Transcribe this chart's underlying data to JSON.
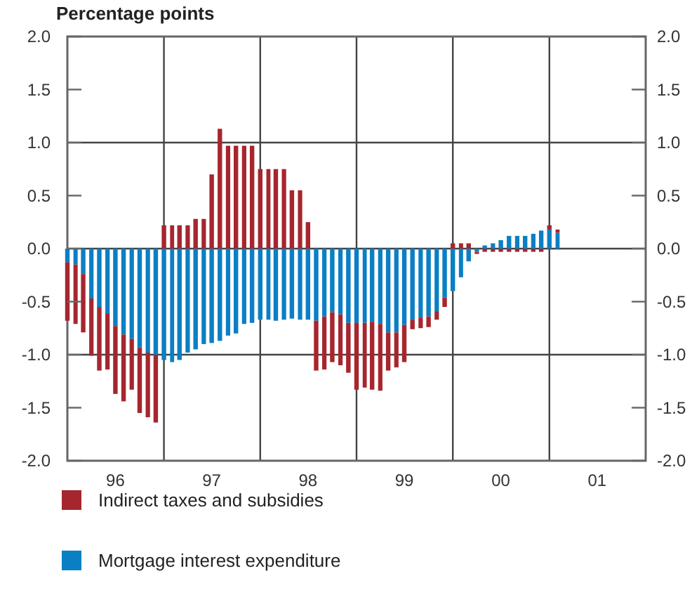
{
  "chart_data": {
    "type": "bar",
    "title": "Percentage points",
    "stacked": true,
    "x": [
      "1996-01",
      "1996-02",
      "1996-03",
      "1996-04",
      "1996-05",
      "1996-06",
      "1996-07",
      "1996-08",
      "1996-09",
      "1996-10",
      "1996-11",
      "1996-12",
      "1997-01",
      "1997-02",
      "1997-03",
      "1997-04",
      "1997-05",
      "1997-06",
      "1997-07",
      "1997-08",
      "1997-09",
      "1997-10",
      "1997-11",
      "1997-12",
      "1998-01",
      "1998-02",
      "1998-03",
      "1998-04",
      "1998-05",
      "1998-06",
      "1998-07",
      "1998-08",
      "1998-09",
      "1998-10",
      "1998-11",
      "1998-12",
      "1999-01",
      "1999-02",
      "1999-03",
      "1999-04",
      "1999-05",
      "1999-06",
      "1999-07",
      "1999-08",
      "1999-09",
      "1999-10",
      "1999-11",
      "1999-12",
      "2000-01",
      "2000-02",
      "2000-03",
      "2000-04",
      "2000-05",
      "2000-06",
      "2000-07",
      "2000-08",
      "2000-09",
      "2000-10",
      "2000-11",
      "2000-12",
      "2001-01",
      "2001-02"
    ],
    "series": [
      {
        "name": "Mortgage interest expenditure",
        "color": "#0a7fc4",
        "values": [
          -0.13,
          -0.15,
          -0.24,
          -0.47,
          -0.55,
          -0.61,
          -0.73,
          -0.81,
          -0.85,
          -0.93,
          -0.98,
          -1.0,
          -1.05,
          -1.07,
          -1.05,
          -0.98,
          -0.95,
          -0.9,
          -0.89,
          -0.87,
          -0.82,
          -0.8,
          -0.71,
          -0.7,
          -0.67,
          -0.67,
          -0.68,
          -0.67,
          -0.66,
          -0.67,
          -0.67,
          -0.68,
          -0.64,
          -0.6,
          -0.62,
          -0.7,
          -0.7,
          -0.7,
          -0.69,
          -0.71,
          -0.79,
          -0.79,
          -0.72,
          -0.67,
          -0.65,
          -0.64,
          -0.59,
          -0.46,
          -0.4,
          -0.27,
          -0.12,
          -0.03,
          0.03,
          0.05,
          0.08,
          0.12,
          0.12,
          0.12,
          0.14,
          0.17,
          0.18,
          0.15
        ]
      },
      {
        "name": "Indirect taxes and subsidies",
        "color": "#a6262e",
        "values": [
          -0.55,
          -0.56,
          -0.55,
          -0.54,
          -0.6,
          -0.53,
          -0.64,
          -0.63,
          -0.48,
          -0.62,
          -0.61,
          -0.64,
          0.22,
          0.22,
          0.22,
          0.22,
          0.28,
          0.28,
          0.7,
          1.13,
          0.97,
          0.97,
          0.97,
          0.97,
          0.75,
          0.75,
          0.75,
          0.75,
          0.55,
          0.55,
          0.25,
          -0.47,
          -0.5,
          -0.47,
          -0.48,
          -0.47,
          -0.63,
          -0.61,
          -0.64,
          -0.63,
          -0.36,
          -0.33,
          -0.35,
          -0.09,
          -0.1,
          -0.1,
          -0.08,
          -0.09,
          0.05,
          0.05,
          0.05,
          -0.02,
          -0.03,
          -0.03,
          -0.03,
          -0.03,
          -0.03,
          -0.03,
          -0.03,
          -0.03,
          0.04,
          0.03
        ]
      }
    ],
    "xlim": [
      "1996-01",
      "2002-01"
    ],
    "xticks": [
      {
        "value": "1996-07",
        "label": "96"
      },
      {
        "value": "1997-07",
        "label": "97"
      },
      {
        "value": "1998-07",
        "label": "98"
      },
      {
        "value": "1999-07",
        "label": "99"
      },
      {
        "value": "2000-07",
        "label": "00"
      },
      {
        "value": "2001-07",
        "label": "01"
      }
    ],
    "ylim": [
      -2.0,
      2.0
    ],
    "yticks": [
      {
        "value": -2,
        "label": "-2.0"
      },
      {
        "value": -1.5,
        "label": "-1.5"
      },
      {
        "value": -1,
        "label": "-1.0"
      },
      {
        "value": -0.5,
        "label": "-0.5"
      },
      {
        "value": 0,
        "label": "0.0"
      },
      {
        "value": 0.5,
        "label": "0.5"
      },
      {
        "value": 1,
        "label": "1.0"
      },
      {
        "value": 1.5,
        "label": "1.5"
      },
      {
        "value": 2,
        "label": "2.0"
      }
    ],
    "y2lim": [
      -2.0,
      2.0
    ],
    "y2ticks": [
      {
        "value": -2,
        "label": "-2.0"
      },
      {
        "value": -1.5,
        "label": "-1.5"
      },
      {
        "value": -1,
        "label": "-1.0"
      },
      {
        "value": -0.5,
        "label": "-0.5"
      },
      {
        "value": 0,
        "label": "0.0"
      },
      {
        "value": 0.5,
        "label": "0.5"
      },
      {
        "value": 1,
        "label": "1.0"
      },
      {
        "value": 1.5,
        "label": "1.5"
      },
      {
        "value": 2,
        "label": "2.0"
      }
    ],
    "ref_lines": [
      {
        "axis": "y",
        "value": 1
      },
      {
        "axis": "y",
        "value": 0
      },
      {
        "axis": "y",
        "value": -1
      },
      {
        "axis": "x",
        "value": "1997-01"
      },
      {
        "axis": "x",
        "value": "1998-01"
      },
      {
        "axis": "x",
        "value": "1999-01"
      },
      {
        "axis": "x",
        "value": "2000-01"
      },
      {
        "axis": "x",
        "value": "2001-01"
      }
    ],
    "grid": false,
    "legend": "bottom"
  }
}
